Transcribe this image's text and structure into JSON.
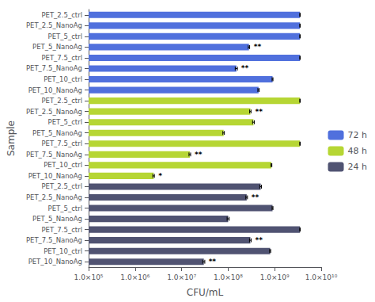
{
  "chart_data": {
    "type": "bar",
    "orientation": "horizontal",
    "log": "x",
    "xlabel": "CFU/mL",
    "ylabel": "Sample",
    "categories": [
      "PET_2.5_ctrl",
      "PET_2.5_NanoAg",
      "PET_5_ctrl",
      "PET_5_NanoAg",
      "PET_7.5_ctrl",
      "PET_7.5_NanoAg",
      "PET_10_ctrl",
      "PET_10_NanoAg",
      "PET_2.5_ctrl",
      "PET_2.5_NanoAg",
      "PET_5_ctrl",
      "PET_5_NanoAg",
      "PET_7.5_ctrl",
      "PET_7.5_NanoAg",
      "PET_10_ctrl",
      "PET_10_NanoAg",
      "PET_2.5_ctrl",
      "PET_2.5_NanoAg",
      "PET_5_ctrl",
      "PET_5_NanoAg",
      "PET_7.5_ctrl",
      "PET_7.5_NanoAg",
      "PET_10_ctrl",
      "PET_10_NanoAg"
    ],
    "series": [
      {
        "name": "72 h",
        "values": [
          3500000000.0,
          3500000000.0,
          3500000000.0,
          280000000.0,
          3500000000.0,
          150000000.0,
          900000000.0,
          450000000.0,
          null,
          null,
          null,
          null,
          null,
          null,
          null,
          null,
          null,
          null,
          null,
          null,
          null,
          null,
          null,
          null
        ],
        "errors": [
          50000000.0,
          50000000.0,
          50000000.0,
          10000000.0,
          50000000.0,
          8000000.0,
          20000000.0,
          15000000.0,
          null,
          null,
          null,
          null,
          null,
          null,
          null,
          null,
          null,
          null,
          null,
          null,
          null,
          null,
          null,
          null
        ],
        "annotations": [
          null,
          null,
          null,
          "**",
          null,
          "**",
          null,
          null,
          null,
          null,
          null,
          null,
          null,
          null,
          null,
          null,
          null,
          null,
          null,
          null,
          null,
          null,
          null,
          null
        ]
      },
      {
        "name": "48 h",
        "values": [
          null,
          null,
          null,
          null,
          null,
          null,
          null,
          null,
          3500000000.0,
          300000000.0,
          350000000.0,
          80000000.0,
          3500000000.0,
          15000000.0,
          850000000.0,
          2500000.0,
          null,
          null,
          null,
          null,
          null,
          null,
          null,
          null
        ],
        "errors": [
          null,
          null,
          null,
          null,
          null,
          null,
          null,
          null,
          50000000.0,
          10000000.0,
          15000000.0,
          3000000.0,
          50000000.0,
          600000.0,
          20000000.0,
          100000.0,
          null,
          null,
          null,
          null,
          null,
          null,
          null,
          null
        ],
        "annotations": [
          null,
          null,
          null,
          null,
          null,
          null,
          null,
          null,
          null,
          "**",
          null,
          null,
          null,
          "**",
          null,
          "*",
          null,
          null,
          null,
          null,
          null,
          null,
          null,
          null
        ]
      },
      {
        "name": "24 h",
        "values": [
          null,
          null,
          null,
          null,
          null,
          null,
          null,
          null,
          null,
          null,
          null,
          null,
          null,
          null,
          null,
          null,
          500000000.0,
          250000000.0,
          900000000.0,
          100000000.0,
          3500000000.0,
          300000000.0,
          800000000.0,
          30000000.0
        ],
        "errors": [
          null,
          null,
          null,
          null,
          null,
          null,
          null,
          null,
          null,
          null,
          null,
          null,
          null,
          null,
          null,
          null,
          20000000.0,
          10000000.0,
          20000000.0,
          5000000.0,
          50000000.0,
          12000000.0,
          20000000.0,
          1500000.0
        ],
        "annotations": [
          null,
          null,
          null,
          null,
          null,
          null,
          null,
          null,
          null,
          null,
          null,
          null,
          null,
          null,
          null,
          null,
          null,
          "**",
          null,
          null,
          null,
          "**",
          null,
          "**"
        ]
      }
    ],
    "xlim": [
      100000,
      10000000000
    ],
    "xticks": [
      {
        "value": 100000,
        "label": "1.0×10⁵"
      },
      {
        "value": 1000000,
        "label": "1.0×10⁶"
      },
      {
        "value": 10000000,
        "label": "1.0×10⁷"
      },
      {
        "value": 100000000,
        "label": "1.0×10⁸"
      },
      {
        "value": 1000000000,
        "label": "1.0×10⁹"
      },
      {
        "value": 10000000000,
        "label": "1.0×10¹⁰"
      }
    ],
    "grid": false,
    "legend": "right"
  }
}
